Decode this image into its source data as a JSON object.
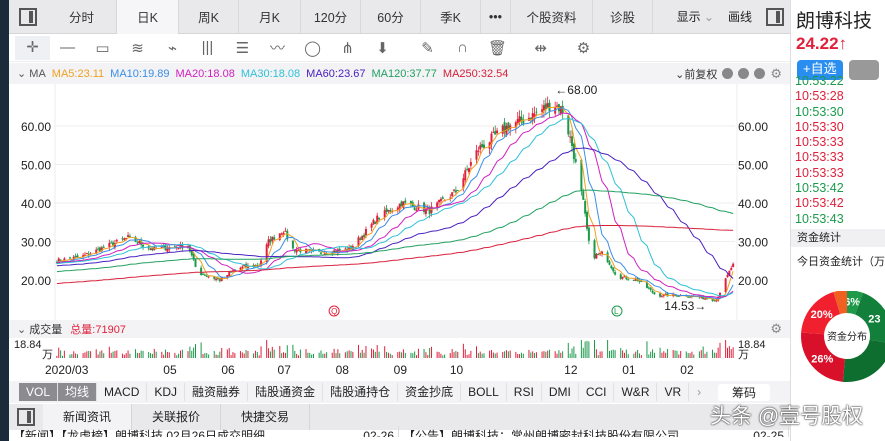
{
  "top_tabs": [
    "分时",
    "日K",
    "周K",
    "月K",
    "120分",
    "60分",
    "季K",
    "•••",
    "个股资料",
    "诊股"
  ],
  "active_tab": "日K",
  "top_right": {
    "display_label": "显示",
    "draw_label": "画线"
  },
  "toolbar_icons": [
    "crosshair-icon",
    "line-icon",
    "rect-icon",
    "fan-icon",
    "segment-icon",
    "vertical-lines-icon",
    "text-icon",
    "wave-icon",
    "circle-icon",
    "fork-icon",
    "arrow-down-icon",
    "eraser-icon",
    "magnet-icon",
    "trash-icon",
    "fit-icon",
    "settings-icon"
  ],
  "ma": {
    "label": "MA",
    "items": [
      {
        "text": "MA5:23.11",
        "color": "#f0a020"
      },
      {
        "text": "MA10:19.89",
        "color": "#3a8ee6"
      },
      {
        "text": "MA20:18.08",
        "color": "#d020c0"
      },
      {
        "text": "MA30:18.08",
        "color": "#30c0d8"
      },
      {
        "text": "MA60:23.67",
        "color": "#4a20c0"
      },
      {
        "text": "MA120:37.77",
        "color": "#20a060"
      },
      {
        "text": "MA250:32.54",
        "color": "#d8203a"
      }
    ],
    "adjust_label": "前复权"
  },
  "colors": {
    "up": "#e0203a",
    "down": "#1a9a4a"
  },
  "chart_data": {
    "type": "candlestick",
    "y_ticks": [
      "60.00",
      "50.00",
      "40.00",
      "30.00",
      "20.00"
    ],
    "ylim": [
      12,
      70
    ],
    "x_ticks": [
      "2020/03",
      "05",
      "06",
      "07",
      "08",
      "09",
      "10",
      "12",
      "01",
      "02"
    ],
    "price_path": [
      [
        "2020-03-02",
        25
      ],
      [
        "2020-03-15",
        26
      ],
      [
        "2020-04-09",
        31
      ],
      [
        "2020-04-22",
        28
      ],
      [
        "2020-05-11",
        29
      ],
      [
        "2020-05-16",
        22
      ],
      [
        "2020-05-28",
        20
      ],
      [
        "2020-06-06",
        23
      ],
      [
        "2020-06-18",
        24
      ],
      [
        "2020-06-23",
        30
      ],
      [
        "2020-07-01",
        33
      ],
      [
        "2020-07-06",
        28
      ],
      [
        "2020-07-19",
        27
      ],
      [
        "2020-08-05",
        28
      ],
      [
        "2020-08-13",
        32
      ],
      [
        "2020-08-20",
        36
      ],
      [
        "2020-09-02",
        40
      ],
      [
        "2020-09-17",
        38
      ],
      [
        "2020-10-01",
        43
      ],
      [
        "2020-10-13",
        54
      ],
      [
        "2020-10-29",
        60
      ],
      [
        "2020-11-08",
        62
      ],
      [
        "2020-11-22",
        66
      ],
      [
        "2020-11-27",
        64
      ],
      [
        "2020-12-02",
        55
      ],
      [
        "2020-12-08",
        40
      ],
      [
        "2020-12-12",
        26
      ],
      [
        "2020-12-19",
        27
      ],
      [
        "2020-12-26",
        21
      ],
      [
        "2021-01-06",
        20
      ],
      [
        "2021-01-16",
        16
      ],
      [
        "2021-02-01",
        16
      ],
      [
        "2021-02-17",
        14.8
      ],
      [
        "2021-02-22",
        20
      ],
      [
        "2021-02-26",
        24.22
      ]
    ],
    "high_label": "←68.00",
    "low_label": "14.53→",
    "markers": [
      {
        "letter": "Q",
        "color": "#e0203a",
        "date": "2020-07-28"
      },
      {
        "letter": "L",
        "color": "#1a9a4a",
        "date": "2020-12-26"
      }
    ]
  },
  "volume": {
    "label": "成交量",
    "total": "总量:71907",
    "max_label": "18.84",
    "unit": "万"
  },
  "indicator_tabs": [
    "VOL",
    "均线",
    "MACD",
    "KDJ",
    "融资融券",
    "陆股通资金",
    "陆股通持仓",
    "资金抄底",
    "BOLL",
    "RSI",
    "DMI",
    "CCI",
    "W&R",
    "VR"
  ],
  "l2_badge": "L2",
  "chips_label": "筹码",
  "bottom_tabs": [
    "新闻资讯",
    "关联报价",
    "快捷交易"
  ],
  "news": [
    {
      "text": "【新闻】【龙虎榜】朗博科技 02月26日成交明细",
      "date": "02-26"
    },
    {
      "text": "【公告】朗博科技：常州朗博密封科技股份有限公司",
      "date": "02-25"
    }
  ],
  "stock": {
    "name": "朗博科技",
    "price": "24.22",
    "arrow": "↑",
    "watch_button": "+自选"
  },
  "ticks": [
    {
      "t": "10:53:22",
      "c": "green"
    },
    {
      "t": "10:53:28",
      "c": "red"
    },
    {
      "t": "10:53:30",
      "c": "green"
    },
    {
      "t": "10:53:30",
      "c": "red"
    },
    {
      "t": "10:53:33",
      "c": "red"
    },
    {
      "t": "10:53:33",
      "c": "red"
    },
    {
      "t": "10:53:33",
      "c": "red"
    },
    {
      "t": "10:53:42",
      "c": "green"
    },
    {
      "t": "10:53:42",
      "c": "red"
    },
    {
      "t": "10:53:43",
      "c": "green"
    }
  ],
  "fund": {
    "header": "资金统计",
    "today": "今日资金统计（万",
    "center": "资金分布",
    "slices": [
      {
        "label": "6%",
        "value": 6,
        "color": "#1e9a48"
      },
      {
        "label": "23",
        "value": 23,
        "color": "#12803a"
      },
      {
        "label": "",
        "value": 25,
        "color": "#0e6e30"
      },
      {
        "label": "26%",
        "value": 26,
        "color": "#d8102a"
      },
      {
        "label": "20%",
        "value": 20,
        "color": "#f0202e"
      },
      {
        "label": "",
        "value": 5,
        "color": "#f06020"
      }
    ]
  },
  "watermark": "头条 @壹号股权"
}
